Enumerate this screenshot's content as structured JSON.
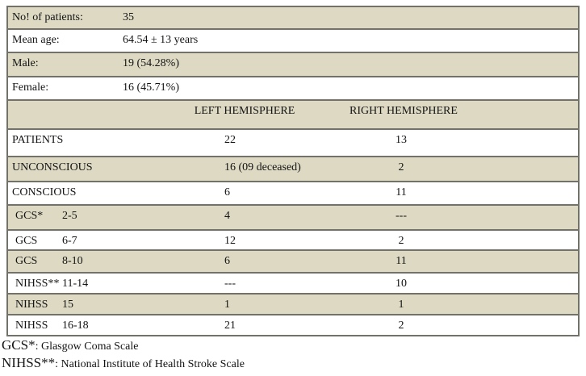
{
  "table": {
    "summary_rows": [
      {
        "label": "No! of patients:",
        "value": "35"
      },
      {
        "label": "Mean age:",
        "value": "64.54 ± 13 years"
      },
      {
        "label": "Male:",
        "value": "19 (54.28%)"
      },
      {
        "label": "Female:",
        "value": "16 (45.71%)"
      }
    ],
    "header": {
      "left": "LEFT HEMISPHERE",
      "right": "RIGHT HEMISPHERE"
    },
    "data_rows": [
      {
        "label": "PATIENTS",
        "range": "",
        "left": "22",
        "right": "13"
      },
      {
        "label": "UNCONSCIOUS",
        "range": "",
        "left": "16 (09 deceased)",
        "right": "2"
      },
      {
        "label": "CONSCIOUS",
        "range": "",
        "left": "6",
        "right": "11"
      },
      {
        "label": "GCS*",
        "range": "2-5",
        "left": "4",
        "right": "---"
      },
      {
        "label": "GCS",
        "range": "6-7",
        "left": "12",
        "right": "2"
      },
      {
        "label": "GCS",
        "range": "8-10",
        "left": "6",
        "right": "11"
      },
      {
        "label": "NIHSS**",
        "range": "11-14",
        "left": "---",
        "right": "10"
      },
      {
        "label": "NIHSS",
        "range": "15",
        "left": "1",
        "right": "1"
      },
      {
        "label": "NIHSS",
        "range": "16-18",
        "left": "21",
        "right": "2"
      }
    ],
    "footnotes": [
      {
        "term": "GCS*",
        "definition": ": Glasgow Coma Scale"
      },
      {
        "term": "NIHSS**",
        "definition": ": National Institute of Health Stroke Scale"
      }
    ]
  },
  "colors": {
    "row_shade": "#ddd9c3",
    "border": "#72726a",
    "text": "#141414",
    "page_bg": "#ffffff"
  }
}
